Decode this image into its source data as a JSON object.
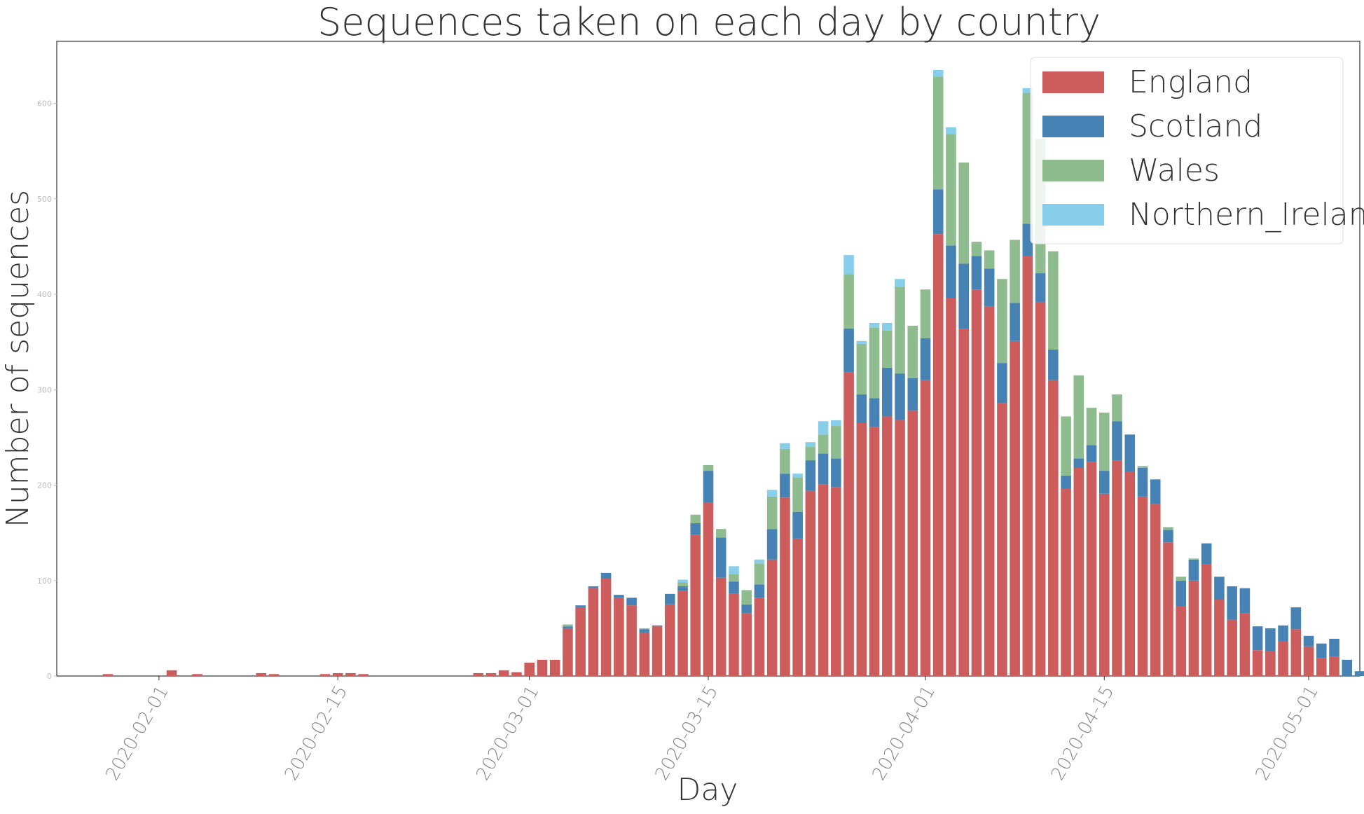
{
  "chart_data": {
    "type": "bar",
    "stacked": true,
    "title": "Sequences taken on each day by country",
    "xlabel": "Day",
    "ylabel": "Number of sequences",
    "ylim": [
      0,
      665
    ],
    "xlim": [
      "2020-01-24",
      "2020-05-05"
    ],
    "yticks": [
      0,
      100,
      200,
      300,
      400,
      500,
      600
    ],
    "xticks": [
      "2020-02-01",
      "2020-02-15",
      "2020-03-01",
      "2020-03-15",
      "2020-04-01",
      "2020-04-15",
      "2020-05-01"
    ],
    "grid": false,
    "legend_position": "top-right",
    "colors": {
      "England": "#cd5c5c",
      "Scotland": "#4682b4",
      "Wales": "#8fbc8f",
      "Northern_Ireland": "#87ceeb"
    },
    "start_date": "2020-01-28",
    "series": [
      {
        "name": "England",
        "values": [
          2,
          0,
          0,
          0,
          0,
          6,
          0,
          2,
          0,
          0,
          0,
          0,
          3,
          2,
          0,
          0,
          0,
          2,
          3,
          3,
          2,
          0,
          0,
          0,
          0,
          0,
          0,
          0,
          0,
          3,
          3,
          6,
          4,
          14,
          17,
          17,
          50,
          72,
          92,
          102,
          82,
          74,
          45,
          52,
          75,
          89,
          148,
          182,
          103,
          86,
          66,
          82,
          122,
          187,
          144,
          194,
          201,
          198,
          318,
          265,
          261,
          272,
          268,
          278,
          310,
          463,
          396,
          364,
          405,
          387,
          286,
          351,
          440,
          392,
          310,
          196,
          218,
          224,
          191,
          226,
          214,
          188,
          180,
          140,
          73,
          100,
          117,
          80,
          59,
          66,
          27,
          26,
          36,
          49,
          31,
          19,
          20,
          0,
          0
        ]
      },
      {
        "name": "Scotland",
        "values": [
          0,
          0,
          0,
          0,
          0,
          0,
          0,
          0,
          0,
          0,
          0,
          0,
          0,
          0,
          0,
          0,
          0,
          0,
          0,
          0,
          0,
          0,
          0,
          0,
          0,
          0,
          0,
          0,
          0,
          0,
          0,
          0,
          0,
          0,
          0,
          0,
          2,
          2,
          2,
          6,
          3,
          8,
          4,
          1,
          11,
          5,
          12,
          33,
          42,
          13,
          9,
          14,
          32,
          25,
          28,
          32,
          32,
          30,
          46,
          30,
          30,
          51,
          49,
          34,
          44,
          47,
          55,
          68,
          35,
          40,
          42,
          40,
          34,
          30,
          32,
          14,
          10,
          18,
          24,
          41,
          39,
          30,
          26,
          13,
          27,
          22,
          22,
          24,
          35,
          26,
          25,
          24,
          17,
          23,
          11,
          15,
          19,
          17,
          5
        ]
      },
      {
        "name": "Wales",
        "values": [
          0,
          0,
          0,
          0,
          0,
          0,
          0,
          0,
          0,
          0,
          0,
          0,
          0,
          0,
          0,
          0,
          0,
          0,
          0,
          0,
          0,
          0,
          0,
          0,
          0,
          0,
          0,
          0,
          0,
          0,
          0,
          0,
          0,
          0,
          0,
          0,
          2,
          0,
          0,
          0,
          0,
          0,
          1,
          0,
          0,
          4,
          9,
          6,
          9,
          8,
          15,
          22,
          34,
          26,
          36,
          14,
          20,
          34,
          57,
          53,
          74,
          39,
          91,
          55,
          51,
          118,
          117,
          106,
          15,
          19,
          88,
          66,
          137,
          141,
          103,
          62,
          87,
          39,
          61,
          28,
          0,
          2,
          0,
          3,
          4,
          1,
          0,
          0,
          0,
          0,
          0,
          0,
          0,
          0,
          0,
          0,
          0,
          0,
          0
        ]
      },
      {
        "name": "Northern_Ireland",
        "values": [
          0,
          0,
          0,
          0,
          0,
          0,
          0,
          0,
          0,
          0,
          0,
          0,
          0,
          0,
          0,
          0,
          0,
          0,
          0,
          0,
          0,
          0,
          0,
          0,
          0,
          0,
          0,
          0,
          0,
          0,
          0,
          0,
          0,
          0,
          0,
          0,
          0,
          0,
          0,
          0,
          0,
          0,
          0,
          0,
          0,
          3,
          0,
          0,
          0,
          8,
          0,
          4,
          7,
          6,
          4,
          5,
          14,
          6,
          20,
          3,
          5,
          8,
          8,
          0,
          0,
          7,
          7,
          0,
          0,
          0,
          0,
          0,
          5,
          0,
          0,
          0,
          0,
          0,
          0,
          0,
          0,
          0,
          0,
          0,
          0,
          0,
          0,
          0,
          0,
          0,
          0,
          0,
          0,
          0,
          0,
          0,
          0,
          0,
          0
        ]
      }
    ]
  }
}
